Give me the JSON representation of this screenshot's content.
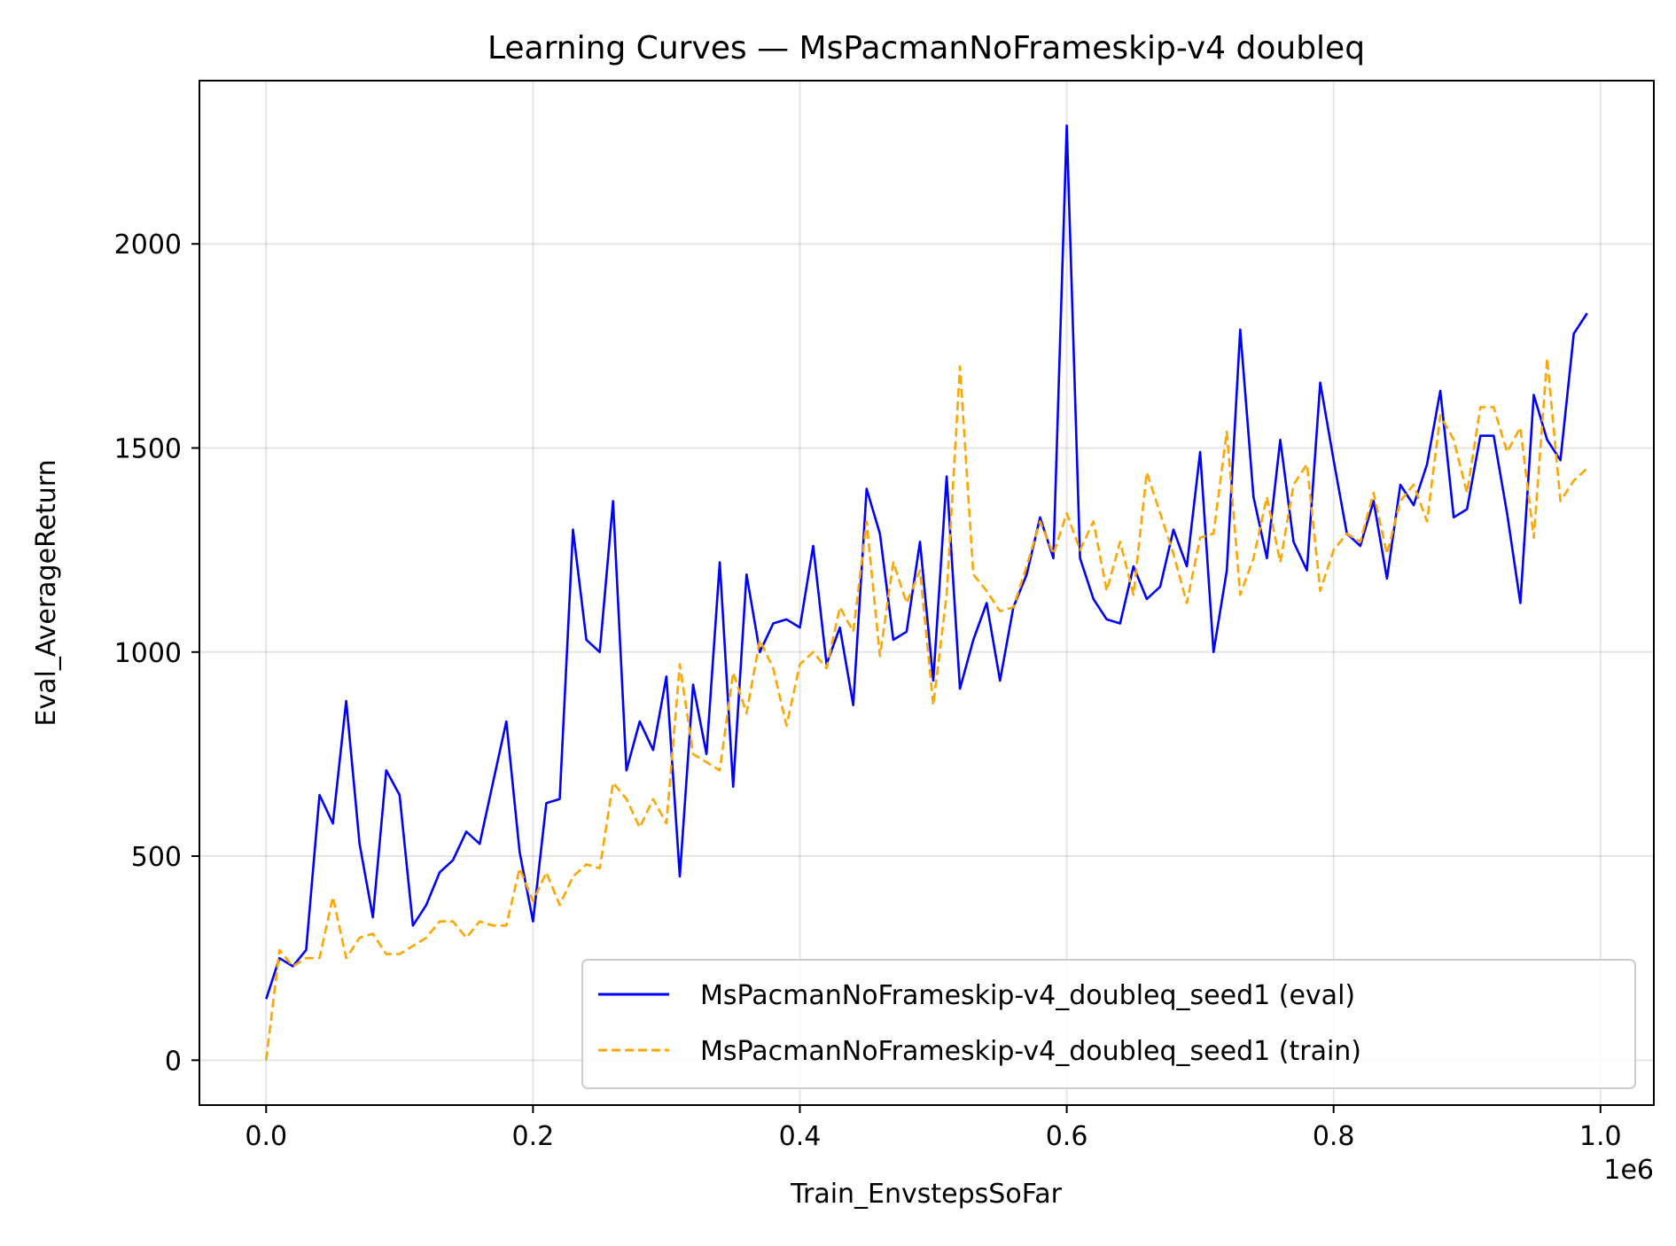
{
  "chart_data": {
    "type": "line",
    "title": "Learning Curves — MsPacmanNoFrameskip-v4 doubleq",
    "xlabel": "Train_EnvstepsSoFar",
    "ylabel": "Eval_AverageReturn",
    "x_offset_label": "1e6",
    "xlim": [
      -50000,
      1040000
    ],
    "ylim": [
      -110,
      2400
    ],
    "x_ticks": [
      0,
      200000,
      400000,
      600000,
      800000,
      1000000
    ],
    "x_tick_labels": [
      "0.0",
      "0.2",
      "0.4",
      "0.6",
      "0.8",
      "1.0"
    ],
    "y_ticks": [
      0,
      500,
      1000,
      1500,
      2000
    ],
    "y_tick_labels": [
      "0",
      "500",
      "1000",
      "1500",
      "2000"
    ],
    "grid": true,
    "legend_position": "lower-right",
    "x": [
      0,
      10000,
      20000,
      30000,
      40000,
      50000,
      60000,
      70000,
      80000,
      90000,
      100000,
      110000,
      120000,
      130000,
      140000,
      150000,
      160000,
      170000,
      180000,
      190000,
      200000,
      210000,
      220000,
      230000,
      240000,
      250000,
      260000,
      270000,
      280000,
      290000,
      300000,
      310000,
      320000,
      330000,
      340000,
      350000,
      360000,
      370000,
      380000,
      390000,
      400000,
      410000,
      420000,
      430000,
      440000,
      450000,
      460000,
      470000,
      480000,
      490000,
      500000,
      510000,
      520000,
      530000,
      540000,
      550000,
      560000,
      570000,
      580000,
      590000,
      600000,
      610000,
      620000,
      630000,
      640000,
      650000,
      660000,
      670000,
      680000,
      690000,
      700000,
      710000,
      720000,
      730000,
      740000,
      750000,
      760000,
      770000,
      780000,
      790000,
      800000,
      810000,
      820000,
      830000,
      840000,
      850000,
      860000,
      870000,
      880000,
      890000,
      900000,
      910000,
      920000,
      930000,
      940000,
      950000,
      960000,
      970000,
      980000,
      990000
    ],
    "series": [
      {
        "name": "MsPacmanNoFrameskip-v4_doubleq_seed1 (eval)",
        "color": "#0000ff",
        "style": "solid",
        "values": [
          150,
          250,
          230,
          270,
          650,
          580,
          880,
          530,
          350,
          710,
          650,
          330,
          380,
          460,
          490,
          560,
          530,
          680,
          830,
          510,
          340,
          630,
          640,
          1300,
          1030,
          1000,
          1370,
          710,
          830,
          760,
          940,
          450,
          920,
          750,
          1220,
          670,
          1190,
          1000,
          1070,
          1080,
          1060,
          1260,
          970,
          1060,
          870,
          1400,
          1290,
          1030,
          1050,
          1270,
          930,
          1430,
          910,
          1030,
          1120,
          930,
          1110,
          1190,
          1330,
          1230,
          2290,
          1230,
          1130,
          1080,
          1070,
          1210,
          1130,
          1160,
          1300,
          1210,
          1490,
          1000,
          1200,
          1790,
          1380,
          1230,
          1520,
          1270,
          1200,
          1660,
          1470,
          1290,
          1260,
          1370,
          1180,
          1410,
          1360,
          1460,
          1640,
          1330,
          1350,
          1530,
          1530,
          1340,
          1120,
          1630,
          1520,
          1470,
          1780,
          1830
        ]
      },
      {
        "name": "MsPacmanNoFrameskip-v4_doubleq_seed1 (train)",
        "color": "#ffa500",
        "style": "dashed",
        "values": [
          0,
          270,
          230,
          250,
          250,
          400,
          250,
          300,
          310,
          260,
          260,
          280,
          300,
          340,
          340,
          300,
          340,
          330,
          330,
          470,
          390,
          460,
          380,
          450,
          480,
          470,
          680,
          640,
          570,
          640,
          580,
          970,
          750,
          730,
          710,
          950,
          850,
          1030,
          960,
          820,
          970,
          1000,
          960,
          1110,
          1050,
          1320,
          990,
          1220,
          1120,
          1200,
          870,
          1140,
          1700,
          1190,
          1150,
          1100,
          1110,
          1210,
          1320,
          1240,
          1340,
          1250,
          1320,
          1150,
          1270,
          1140,
          1440,
          1340,
          1240,
          1120,
          1280,
          1290,
          1540,
          1140,
          1230,
          1380,
          1220,
          1410,
          1460,
          1150,
          1250,
          1290,
          1270,
          1390,
          1240,
          1370,
          1410,
          1320,
          1580,
          1520,
          1390,
          1600,
          1600,
          1490,
          1550,
          1280,
          1720,
          1370,
          1420,
          1450
        ]
      }
    ]
  }
}
